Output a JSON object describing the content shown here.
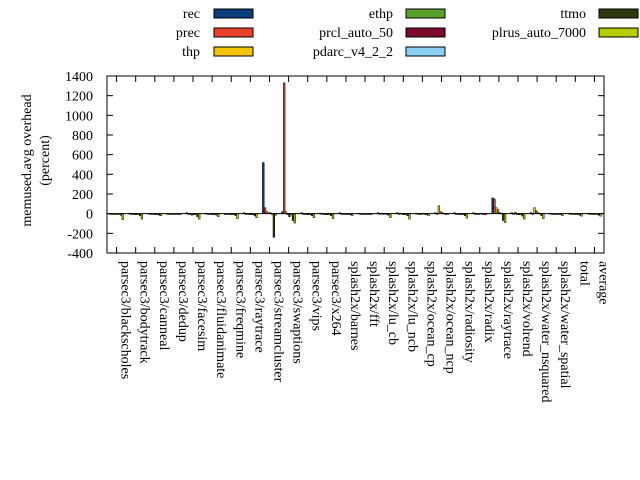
{
  "chart_data": {
    "type": "bar",
    "ylabel": "memused.avg overhead\n(percent)",
    "ylabel_lines": [
      "memused.avg overhead",
      "(percent)"
    ],
    "ylim": [
      -400,
      1400
    ],
    "yticks": [
      -400,
      -200,
      0,
      200,
      400,
      600,
      800,
      1000,
      1200,
      1400
    ],
    "ytick_labels": [
      "-400",
      "-200",
      "0",
      "200",
      "400",
      "600",
      "800",
      "1000",
      "1200",
      "1400"
    ],
    "grid": false,
    "legend_position": "top",
    "categories": [
      "parsec3/blackscholes",
      "parsec3/bodytrack",
      "parsec3/canneal",
      "parsec3/dedup",
      "parsec3/facesim",
      "parsec3/fluidanimate",
      "parsec3/freqmine",
      "parsec3/raytrace",
      "parsec3/streamcluster",
      "parsec3/swaptions",
      "parsec3/vips",
      "parsec3/x264",
      "splash2x/barnes",
      "splash2x/fft",
      "splash2x/lu_cb",
      "splash2x/lu_ncb",
      "splash2x/ocean_cp",
      "splash2x/ocean_ncp",
      "splash2x/radiosity",
      "splash2x/radix",
      "splash2x/raytrace",
      "splash2x/volrend",
      "splash2x/water_nsquared",
      "splash2x/water_spatial",
      "total",
      "average"
    ],
    "series": [
      {
        "name": "rec",
        "color": "#0b3d7a",
        "values": [
          0,
          5,
          5,
          0,
          10,
          5,
          0,
          10,
          520,
          20,
          10,
          5,
          10,
          5,
          10,
          10,
          5,
          10,
          10,
          10,
          160,
          10,
          10,
          5,
          5,
          5
        ]
      },
      {
        "name": "prec",
        "color": "#e8402a",
        "values": [
          0,
          0,
          0,
          0,
          0,
          0,
          0,
          0,
          60,
          1330,
          0,
          0,
          0,
          0,
          0,
          0,
          0,
          0,
          0,
          0,
          150,
          0,
          0,
          0,
          0,
          0
        ]
      },
      {
        "name": "thp",
        "color": "#f5c400",
        "values": [
          -5,
          -10,
          -5,
          0,
          -10,
          -5,
          -5,
          -5,
          20,
          20,
          -5,
          -5,
          0,
          0,
          5,
          5,
          0,
          80,
          -5,
          0,
          60,
          15,
          60,
          0,
          0,
          0
        ]
      },
      {
        "name": "ethp",
        "color": "#5aa02c",
        "values": [
          -5,
          -10,
          -5,
          0,
          -15,
          -5,
          -10,
          -10,
          10,
          -10,
          -10,
          -10,
          -5,
          0,
          -5,
          -5,
          0,
          20,
          -10,
          0,
          40,
          -10,
          30,
          -5,
          -5,
          -5
        ]
      },
      {
        "name": "prcl_auto_50",
        "color": "#7a0b2a",
        "values": [
          -5,
          -10,
          -10,
          0,
          -10,
          -10,
          -10,
          -10,
          10,
          -30,
          -10,
          -10,
          -5,
          0,
          5,
          -10,
          5,
          10,
          -10,
          5,
          10,
          -10,
          10,
          -5,
          -5,
          -5
        ]
      },
      {
        "name": "pdarc_v4_2_2",
        "color": "#8ccff5",
        "values": [
          -5,
          -10,
          -5,
          0,
          -10,
          -5,
          -10,
          -10,
          -5,
          -10,
          -10,
          -10,
          -5,
          0,
          -10,
          -10,
          0,
          5,
          -10,
          0,
          5,
          -10,
          5,
          -5,
          -5,
          -5
        ]
      },
      {
        "name": "ttmo",
        "color": "#2e3a10",
        "values": [
          -15,
          -20,
          -15,
          -5,
          -30,
          -15,
          -20,
          -20,
          -240,
          -70,
          -20,
          -20,
          -10,
          -5,
          -15,
          -20,
          -10,
          -5,
          -20,
          -5,
          -70,
          -25,
          -20,
          -10,
          -15,
          -15
        ]
      },
      {
        "name": "plrus_auto_7000",
        "color": "#b5cc00",
        "values": [
          -60,
          -55,
          -20,
          -10,
          -55,
          -30,
          -50,
          -40,
          -15,
          -95,
          -40,
          -50,
          -20,
          -10,
          -40,
          -55,
          -20,
          0,
          -45,
          -10,
          -90,
          -55,
          -50,
          -20,
          -25,
          -25
        ]
      }
    ]
  }
}
